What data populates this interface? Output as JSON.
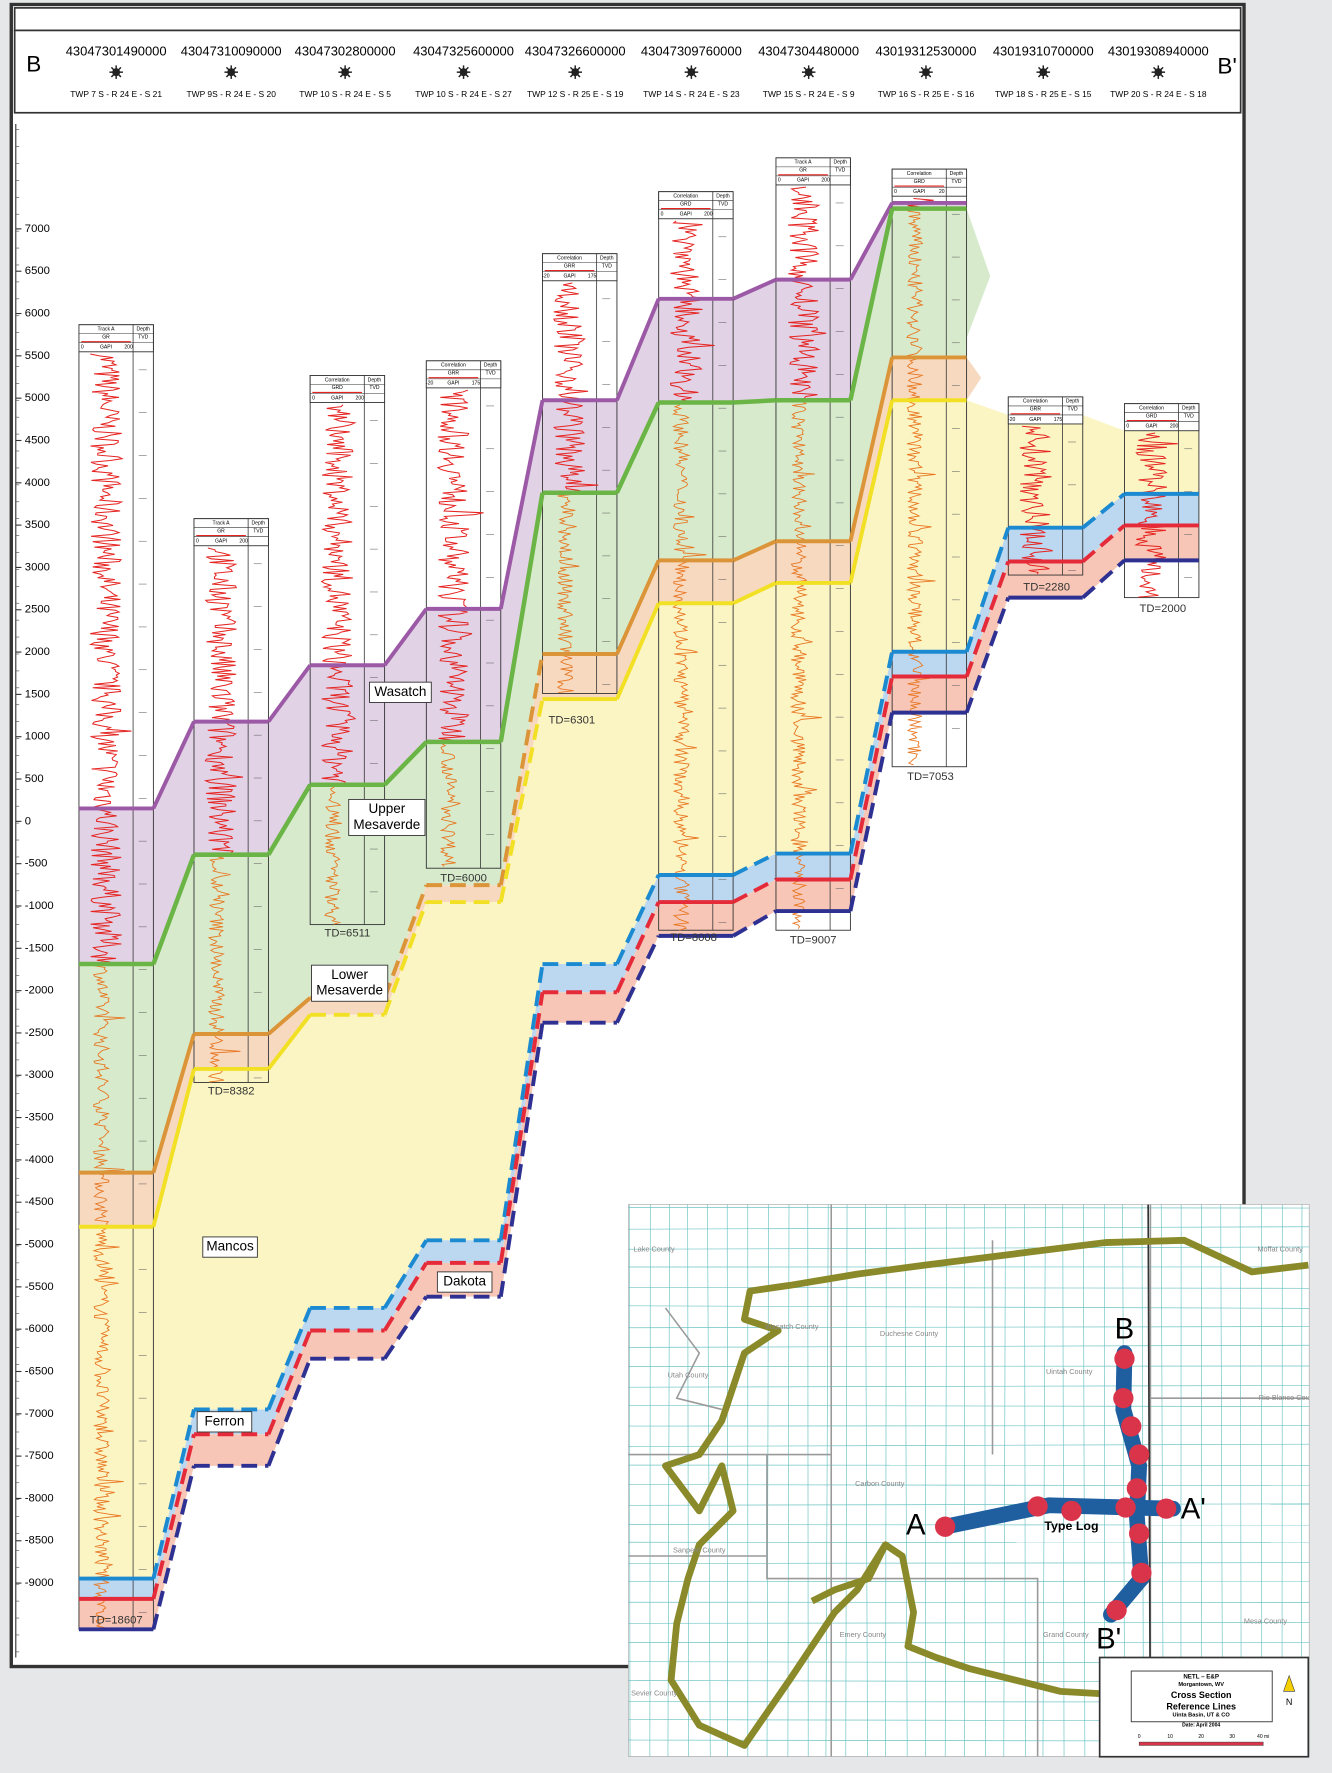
{
  "header": {
    "left_label": "B",
    "right_label": "B'",
    "wells": [
      {
        "api": "43047301490000",
        "location": "TWP 7 S - R 24 E - S 21",
        "log": {
          "track": "Track A",
          "curve": "GR",
          "unit": "GAPI",
          "min": "0",
          "max": "200",
          "depth": "Depth",
          "depth_unit": "TVD"
        },
        "td": "TD=18607"
      },
      {
        "api": "43047310090000",
        "location": "TWP 9S - R 24 E - S 20",
        "log": {
          "track": "Track A",
          "curve": "GR",
          "unit": "GAPI",
          "min": "0",
          "max": "200",
          "depth": "Depth",
          "depth_unit": "TVD"
        },
        "td": "TD=8382"
      },
      {
        "api": "43047302800000",
        "location": "TWP 10 S - R 24 E - S 5",
        "log": {
          "track": "Correlation",
          "curve": "GRD",
          "unit": "GAPI",
          "min": "0",
          "max": "200",
          "depth": "Depth",
          "depth_unit": "TVD"
        },
        "td": "TD=6511"
      },
      {
        "api": "43047325600000",
        "location": "TWP 10 S - R 24 E - S 27",
        "log": {
          "track": "Correlation",
          "curve": "GRR",
          "unit": "GAPI",
          "min": "-20",
          "max": "175",
          "depth": "Depth",
          "depth_unit": "TVD"
        },
        "td": "TD=6000"
      },
      {
        "api": "43047326600000",
        "location": "TWP 12 S - R 25 E - S 19",
        "log": {
          "track": "Correlation",
          "curve": "GRR",
          "unit": "GAPI",
          "min": "-20",
          "max": "175",
          "depth": "Depth",
          "depth_unit": "TVD"
        },
        "td": "TD=6301"
      },
      {
        "api": "43047309760000",
        "location": "TWP 14 S - R 24 E - S 23",
        "log": {
          "track": "Correlation",
          "curve": "GRD",
          "unit": "GAPI",
          "min": "0",
          "max": "200",
          "depth": "Depth",
          "depth_unit": "TVD"
        },
        "td": "TD=8008"
      },
      {
        "api": "43047304480000",
        "location": "TWP 15 S - R 24 E - S 9",
        "log": {
          "track": "Track A",
          "curve": "GR",
          "unit": "GAPI",
          "min": "0",
          "max": "200",
          "depth": "Depth",
          "depth_unit": "TVD"
        },
        "td": "TD=9007"
      },
      {
        "api": "43019312530000",
        "location": "TWP 16 S - R 25 E - S 16",
        "log": {
          "track": "Correlation",
          "curve": "GRD",
          "unit": "GAPI",
          "min": "0",
          "max": "20",
          "depth": "Depth",
          "depth_unit": "TVD"
        },
        "td": "TD=7053"
      },
      {
        "api": "43019310700000",
        "location": "TWP 18 S - R 25 E - S 15",
        "log": {
          "track": "Correlation",
          "curve": "GRR",
          "unit": "GAPI",
          "min": "-20",
          "max": "175",
          "depth": "Depth",
          "depth_unit": "TVD"
        },
        "td": "TD=2280"
      },
      {
        "api": "43019308940000",
        "location": "TWP 20 S - R 24 E - S 18",
        "log": {
          "track": "Correlation",
          "curve": "GRD",
          "unit": "GAPI",
          "min": "0",
          "max": "200",
          "depth": "Depth",
          "depth_unit": "TVD"
        },
        "td": "TD=2000"
      }
    ]
  },
  "elevation_ticks": [
    7000,
    6500,
    6000,
    5500,
    5000,
    4500,
    4000,
    3500,
    3000,
    2500,
    2000,
    1500,
    1000,
    500,
    0,
    -500,
    -1000,
    -1500,
    -2000,
    -2500,
    -3000,
    -3500,
    -4000,
    -4500,
    -5000,
    -5500,
    -6000,
    -6500,
    -7000,
    -7500,
    -8000,
    -8500,
    -9000
  ],
  "formations": [
    {
      "lines": [
        "Wasatch"
      ]
    },
    {
      "lines": [
        "Upper",
        "Mesaverde"
      ]
    },
    {
      "lines": [
        "Lower",
        "Mesaverde"
      ]
    },
    {
      "lines": [
        "Mancos"
      ]
    },
    {
      "lines": [
        "Dakota"
      ]
    },
    {
      "lines": [
        "Ferron"
      ]
    }
  ],
  "map": {
    "line_labels": [
      "A",
      "A'",
      "B",
      "B'"
    ],
    "type_log": "Type Log",
    "counties": [
      "Lake County",
      "Moffat County",
      "Wasatch County",
      "Duchesne County",
      "Uintah County",
      "Utah County",
      "Rio Blanco County",
      "Carbon County",
      "Sanpete County",
      "Emery County",
      "Grand County",
      "Mesa County",
      "Sevier County"
    ],
    "legend": {
      "org": "NETL – E&P",
      "place": "Morgantown, WV",
      "title1": "Cross Section",
      "title2": "Reference Lines",
      "region": "Uinta Basin, UT & CO",
      "date": "Date: April 2004",
      "north": "N",
      "scale": [
        "0",
        "10",
        "20",
        "30",
        "40 mi"
      ]
    }
  }
}
